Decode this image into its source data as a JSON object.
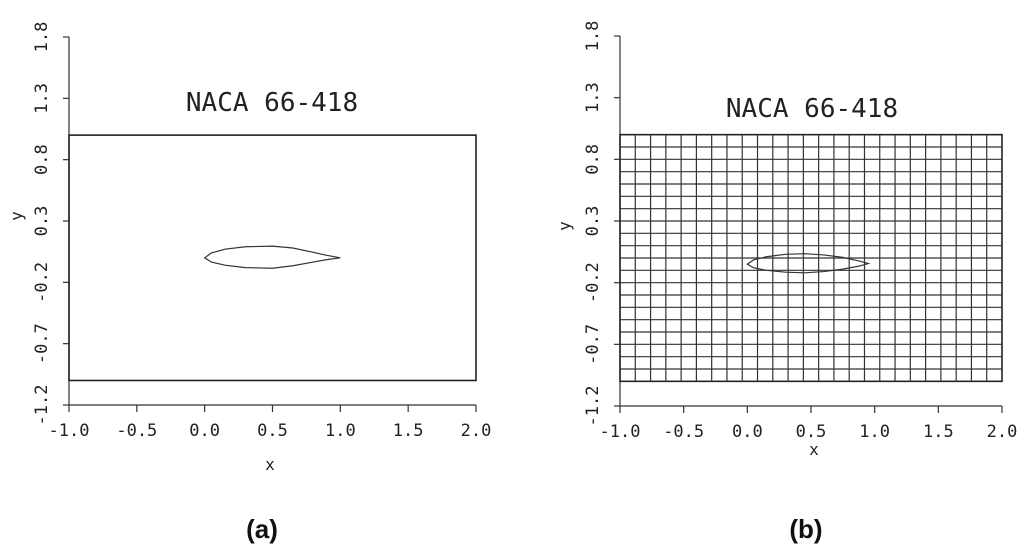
{
  "chart_data": [
    {
      "type": "line",
      "title": "NACA 66-418",
      "caption": "(a)",
      "xlabel": "x",
      "ylabel": "y",
      "xlim": [
        -1.0,
        2.0
      ],
      "ylim": [
        -1.2,
        1.8
      ],
      "x_ticks": [
        "-1.0",
        "-0.5",
        "0.0",
        "0.5",
        "1.0",
        "1.5",
        "2.0"
      ],
      "y_ticks": [
        "-1.2",
        "-0.7",
        "-0.2",
        "0.3",
        "0.8",
        "1.3",
        "1.8"
      ],
      "grid": false,
      "domain_box": {
        "x": [
          -1.0,
          2.0
        ],
        "y": [
          -1.0,
          1.0
        ]
      },
      "airfoil": {
        "name": "NACA 66-418",
        "upper": [
          [
            0.0,
            0.0
          ],
          [
            0.05,
            0.04
          ],
          [
            0.15,
            0.07
          ],
          [
            0.3,
            0.09
          ],
          [
            0.5,
            0.095
          ],
          [
            0.65,
            0.08
          ],
          [
            0.8,
            0.045
          ],
          [
            0.9,
            0.02
          ],
          [
            1.0,
            0.0
          ]
        ],
        "lower": [
          [
            0.0,
            0.0
          ],
          [
            0.05,
            -0.035
          ],
          [
            0.15,
            -0.06
          ],
          [
            0.3,
            -0.08
          ],
          [
            0.5,
            -0.085
          ],
          [
            0.65,
            -0.065
          ],
          [
            0.8,
            -0.035
          ],
          [
            0.9,
            -0.015
          ],
          [
            1.0,
            0.0
          ]
        ]
      }
    },
    {
      "type": "line",
      "title": "NACA 66-418",
      "caption": "(b)",
      "xlabel": "x",
      "ylabel": "y",
      "xlim": [
        -1.0,
        2.0
      ],
      "ylim": [
        -1.2,
        1.8
      ],
      "x_ticks": [
        "-1.0",
        "-0.5",
        "0.0",
        "0.5",
        "1.0",
        "1.5",
        "2.0"
      ],
      "y_ticks": [
        "-1.2",
        "-0.7",
        "-0.2",
        "0.3",
        "0.8",
        "1.3",
        "1.8"
      ],
      "grid": true,
      "domain_box": {
        "x": [
          -1.0,
          2.0
        ],
        "y": [
          -1.0,
          1.0
        ]
      },
      "mesh": {
        "nx": 25,
        "ny": 20
      },
      "airfoil": {
        "name": "NACA 66-418",
        "upper": [
          [
            0.0,
            -0.05
          ],
          [
            0.05,
            -0.015
          ],
          [
            0.15,
            0.01
          ],
          [
            0.3,
            0.03
          ],
          [
            0.45,
            0.035
          ],
          [
            0.6,
            0.025
          ],
          [
            0.75,
            0.005
          ],
          [
            0.88,
            -0.025
          ],
          [
            0.95,
            -0.045
          ]
        ],
        "lower": [
          [
            0.0,
            -0.05
          ],
          [
            0.05,
            -0.08
          ],
          [
            0.15,
            -0.1
          ],
          [
            0.3,
            -0.115
          ],
          [
            0.45,
            -0.12
          ],
          [
            0.6,
            -0.11
          ],
          [
            0.75,
            -0.09
          ],
          [
            0.88,
            -0.065
          ],
          [
            0.95,
            -0.045
          ]
        ]
      }
    }
  ]
}
